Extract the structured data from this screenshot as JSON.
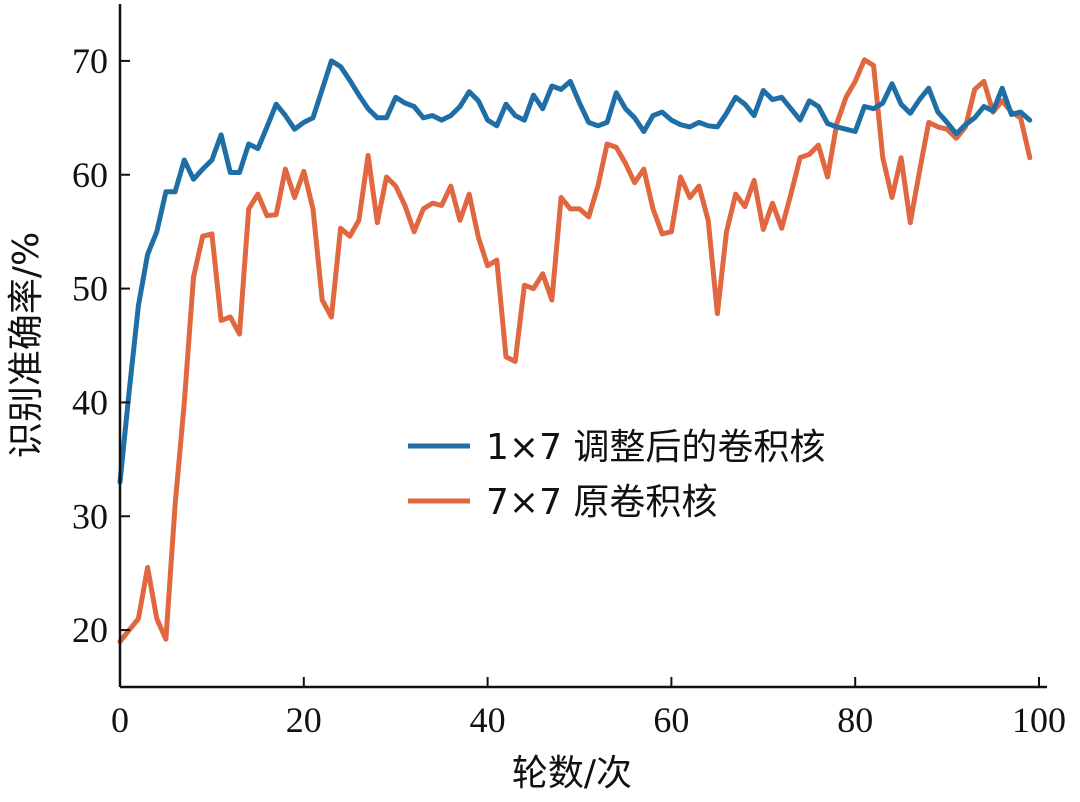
{
  "chart_data": {
    "type": "line",
    "xlabel": "轮数/次",
    "ylabel": "识别准确率/%",
    "xlim": [
      0,
      100
    ],
    "ylim": [
      15,
      75
    ],
    "xticks": [
      "0",
      "20",
      "40",
      "60",
      "80",
      "100"
    ],
    "yticks": [
      "20",
      "30",
      "40",
      "50",
      "60",
      "70"
    ],
    "grid": false,
    "legend_position": "center-right",
    "series": [
      {
        "name": "1×7 调整后的卷积核",
        "color": "#1f6ea5",
        "x": [
          0,
          1,
          2,
          3,
          4,
          5,
          6,
          7,
          8,
          9,
          10,
          11,
          12,
          13,
          14,
          15,
          16,
          17,
          18,
          19,
          20,
          21,
          22,
          23,
          24,
          25,
          26,
          27,
          28,
          29,
          30,
          31,
          32,
          33,
          34,
          35,
          36,
          37,
          38,
          39,
          40,
          41,
          42,
          43,
          44,
          45,
          46,
          47,
          48,
          49,
          50,
          51,
          52,
          53,
          54,
          55,
          56,
          57,
          58,
          59,
          60,
          61,
          62,
          63,
          64,
          65,
          66,
          67,
          68,
          69,
          70,
          71,
          72,
          73,
          74,
          75,
          76,
          77,
          78,
          79,
          80,
          81,
          82,
          83,
          84,
          85,
          86,
          87,
          88,
          89,
          90,
          91,
          92,
          93,
          94,
          95,
          96,
          97,
          98,
          99
        ],
        "y": [
          33,
          41,
          48.5,
          53,
          55,
          58.5,
          58.5,
          61.3,
          59.6,
          60.5,
          61.3,
          63.5,
          60.2,
          60.2,
          62.7,
          62.3,
          64.2,
          66.2,
          65.2,
          64,
          64.6,
          65,
          67.5,
          70,
          69.5,
          68.3,
          67,
          65.8,
          65,
          65,
          66.8,
          66.3,
          66,
          65,
          65.2,
          64.8,
          65.2,
          66,
          67.3,
          66.5,
          64.8,
          64.3,
          66.2,
          65.2,
          64.8,
          67,
          65.8,
          67.8,
          67.5,
          68.2,
          66.3,
          64.6,
          64.3,
          64.6,
          67.2,
          65.8,
          65,
          63.8,
          65.2,
          65.5,
          64.8,
          64.4,
          64.2,
          64.6,
          64.3,
          64.2,
          65.4,
          66.8,
          66.2,
          65.2,
          67.4,
          66.6,
          66.8,
          65.8,
          64.8,
          66.5,
          66,
          64.5,
          64.2,
          64,
          63.8,
          66,
          65.8,
          66.3,
          68,
          66.2,
          65.4,
          66.6,
          67.6,
          65.5,
          64.6,
          63.6,
          64.4,
          65,
          66,
          65.6,
          67.6,
          65.3,
          65.5,
          64.8
        ]
      },
      {
        "name": "7×7 原卷积核",
        "color": "#e0673f",
        "x": [
          0,
          1,
          2,
          3,
          4,
          5,
          6,
          7,
          8,
          9,
          10,
          11,
          12,
          13,
          14,
          15,
          16,
          17,
          18,
          19,
          20,
          21,
          22,
          23,
          24,
          25,
          26,
          27,
          28,
          29,
          30,
          31,
          32,
          33,
          34,
          35,
          36,
          37,
          38,
          39,
          40,
          41,
          42,
          43,
          44,
          45,
          46,
          47,
          48,
          49,
          50,
          51,
          52,
          53,
          54,
          55,
          56,
          57,
          58,
          59,
          60,
          61,
          62,
          63,
          64,
          65,
          66,
          67,
          68,
          69,
          70,
          71,
          72,
          73,
          74,
          75,
          76,
          77,
          78,
          79,
          80,
          81,
          82,
          83,
          84,
          85,
          86,
          87,
          88,
          89,
          90,
          91,
          92,
          93,
          94,
          95,
          96,
          97,
          98,
          99
        ],
        "y": [
          19,
          20,
          21,
          25.5,
          21,
          19.2,
          31,
          40,
          51,
          54.6,
          54.8,
          47.2,
          47.5,
          46,
          57,
          58.3,
          56.4,
          56.5,
          60.5,
          58,
          60.3,
          57,
          49,
          47.5,
          55.3,
          54.6,
          56,
          61.7,
          55.8,
          59.8,
          59,
          57.3,
          55,
          57,
          57.5,
          57.3,
          59,
          56,
          58.3,
          54.5,
          52,
          52.5,
          44,
          43.6,
          50.3,
          50,
          51.3,
          49,
          58,
          57,
          57,
          56.3,
          59,
          62.7,
          62.4,
          61,
          59.3,
          60.5,
          57,
          54.8,
          55,
          59.8,
          58,
          59,
          56,
          47.8,
          55,
          58.3,
          57.2,
          59.5,
          55.2,
          57.5,
          55.3,
          58.3,
          61.5,
          61.8,
          62.6,
          59.8,
          64.5,
          66.8,
          68.2,
          70.1,
          69.6,
          61.5,
          58,
          61.5,
          55.8,
          60.3,
          64.6,
          64.2,
          64,
          63.2,
          64.2,
          67.5,
          68.2,
          65.5,
          66.5,
          65.5,
          65,
          61.5
        ]
      }
    ]
  }
}
